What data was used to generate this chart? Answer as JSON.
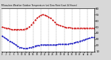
{
  "title": "Milwaukee Weather Outdoor Temperature (vs) Dew Point (Last 24 Hours)",
  "bg_color": "#d8d8d8",
  "plot_bg": "#ffffff",
  "temp_color": "#cc0000",
  "dew_color": "#0000bb",
  "grid_color": "#888888",
  "ylim": [
    10,
    80
  ],
  "ytick_labels": [
    "80",
    "70",
    "60",
    "50",
    "40",
    "30",
    "20",
    "10"
  ],
  "ytick_vals": [
    80,
    70,
    60,
    50,
    40,
    30,
    20,
    10
  ],
  "n_points": 48,
  "temp_values": [
    50,
    49,
    48,
    48,
    47,
    46,
    46,
    46,
    46,
    46,
    46,
    46,
    47,
    48,
    50,
    53,
    57,
    61,
    64,
    67,
    69,
    70,
    69,
    68,
    66,
    64,
    61,
    58,
    55,
    53,
    52,
    51,
    50,
    49,
    49,
    49,
    48,
    48,
    48,
    48,
    48,
    48,
    48,
    48,
    48,
    48,
    48,
    48
  ],
  "dew_values": [
    35,
    33,
    31,
    29,
    27,
    25,
    23,
    21,
    19,
    17,
    16,
    15,
    15,
    15,
    16,
    17,
    18,
    19,
    20,
    20,
    21,
    21,
    21,
    21,
    21,
    21,
    21,
    21,
    21,
    22,
    22,
    22,
    22,
    22,
    22,
    23,
    23,
    24,
    25,
    26,
    27,
    28,
    29,
    30,
    31,
    32,
    33,
    33
  ]
}
